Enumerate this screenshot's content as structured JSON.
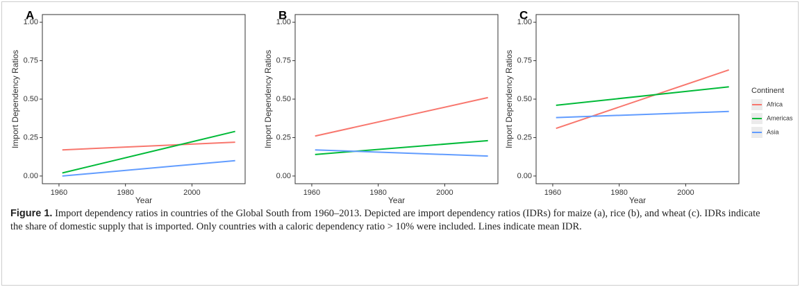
{
  "chart_data": [
    {
      "type": "line",
      "panel": "A",
      "xlabel": "Year",
      "ylabel": "Import Dependency Ratios",
      "x": [
        1961,
        2013
      ],
      "xlim": [
        1955,
        2016
      ],
      "xticks": [
        1960,
        1980,
        2000
      ],
      "ylim": [
        -0.05,
        1.05
      ],
      "yticks": [
        {
          "value": 0,
          "label": "0.00"
        },
        {
          "value": 0.25,
          "label": "0.25"
        },
        {
          "value": 0.5,
          "label": "0.50"
        },
        {
          "value": 0.75,
          "label": "0.75"
        },
        {
          "value": 1,
          "label": "1.00"
        }
      ],
      "series": [
        {
          "name": "Africa",
          "color": "#f8766d",
          "values": [
            0.17,
            0.22
          ]
        },
        {
          "name": "Americas",
          "color": "#00ba38",
          "values": [
            0.02,
            0.29
          ]
        },
        {
          "name": "Asia",
          "color": "#619cff",
          "values": [
            0.0,
            0.1
          ]
        }
      ]
    },
    {
      "type": "line",
      "panel": "B",
      "xlabel": "Year",
      "ylabel": "Import Dependency Ratios",
      "x": [
        1961,
        2013
      ],
      "xlim": [
        1955,
        2016
      ],
      "xticks": [
        1960,
        1980,
        2000
      ],
      "ylim": [
        -0.05,
        1.05
      ],
      "yticks": [
        {
          "value": 0,
          "label": "0.00"
        },
        {
          "value": 0.25,
          "label": "0.25"
        },
        {
          "value": 0.5,
          "label": "0.50"
        },
        {
          "value": 0.75,
          "label": "0.75"
        },
        {
          "value": 1,
          "label": "1.00"
        }
      ],
      "series": [
        {
          "name": "Africa",
          "color": "#f8766d",
          "values": [
            0.26,
            0.51
          ]
        },
        {
          "name": "Americas",
          "color": "#00ba38",
          "values": [
            0.14,
            0.23
          ]
        },
        {
          "name": "Asia",
          "color": "#619cff",
          "values": [
            0.17,
            0.13
          ]
        }
      ]
    },
    {
      "type": "line",
      "panel": "C",
      "xlabel": "Year",
      "ylabel": "Import Dependency Ratios",
      "x": [
        1961,
        2013
      ],
      "xlim": [
        1955,
        2016
      ],
      "xticks": [
        1960,
        1980,
        2000
      ],
      "ylim": [
        -0.05,
        1.05
      ],
      "yticks": [
        {
          "value": 0,
          "label": "0.00"
        },
        {
          "value": 0.25,
          "label": "0.25"
        },
        {
          "value": 0.5,
          "label": "0.50"
        },
        {
          "value": 0.75,
          "label": "0.75"
        },
        {
          "value": 1,
          "label": "1.00"
        }
      ],
      "legend_title": "Continent",
      "series": [
        {
          "name": "Africa",
          "color": "#f8766d",
          "values": [
            0.31,
            0.69
          ]
        },
        {
          "name": "Americas",
          "color": "#00ba38",
          "values": [
            0.46,
            0.58
          ]
        },
        {
          "name": "Asia",
          "color": "#619cff",
          "values": [
            0.38,
            0.42
          ]
        }
      ]
    }
  ],
  "caption": {
    "label": "Figure 1.",
    "text": "Import dependency ratios in countries of the Global South from 1960–2013. Depicted are import dependency ratios (IDRs) for maize (a), rice (b), and wheat (c). IDRs indicate the share of domestic supply that is imported. Only countries with a caloric dependency ratio > 10% were included. Lines indicate mean IDR."
  }
}
